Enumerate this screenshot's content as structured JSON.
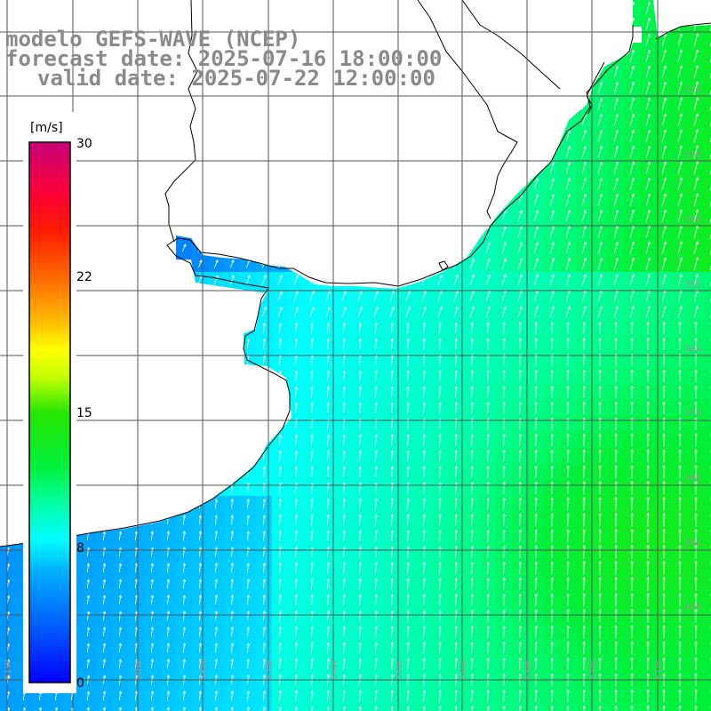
{
  "title": {
    "line1": "modelo GEFS-WAVE (NCEP)",
    "line2": "forecast date: 2025-07-16 18:00:00",
    "line3": "valid date: 2025-07-22 12:00:00"
  },
  "colorbar": {
    "unit": "[m/s]",
    "min": 0,
    "max": 30,
    "labels": [
      "30",
      "22",
      "15",
      "8",
      "0"
    ],
    "colors": [
      "#0000ff",
      "#0066ff",
      "#00ccff",
      "#00ffee",
      "#00ff99",
      "#00ee33",
      "#33ff00",
      "#ccff00",
      "#ffff00",
      "#ffbb00",
      "#ff7700",
      "#ff2200",
      "#ff0033",
      "#ee0066",
      "#cc0077"
    ]
  },
  "map": {
    "variable": "wind speed",
    "units": "m/s",
    "lat_labels": [
      "32S",
      "33S",
      "34S",
      "35S",
      "36S",
      "37S",
      "38S",
      "39S",
      "40S"
    ],
    "lon_labels": [
      "61W",
      "60W",
      "59W",
      "58W",
      "57W",
      "56W",
      "55W",
      "54W",
      "53W",
      "52W",
      "51W"
    ],
    "grid_lines": "on",
    "colors": {
      "land": "#ffffff",
      "coastline": "#000000",
      "grid": "#555555",
      "arrows": "#ffffff",
      "title": "#8a8a8a"
    }
  }
}
